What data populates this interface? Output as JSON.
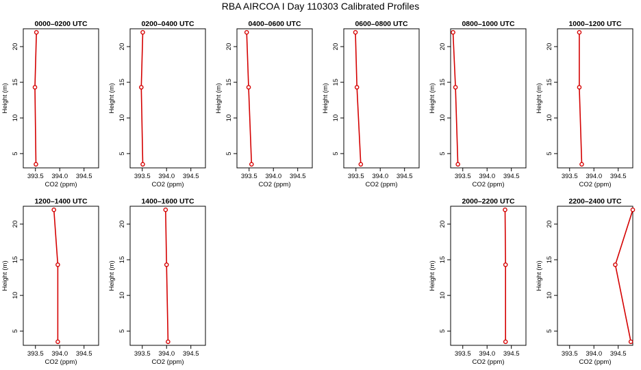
{
  "figure": {
    "title": "RBA AIRCOA I  Day 110303  Calibrated Profiles"
  },
  "chart_data": [
    {
      "type": "line",
      "title": "0000–0200 UTC",
      "xlabel": "CO2 (ppm)",
      "ylabel": "Height (m)",
      "xlim": [
        393.25,
        394.8
      ],
      "ylim": [
        3,
        22.5
      ],
      "xticks": [
        "393.5",
        "394.0",
        "394.5"
      ],
      "yticks": [
        "5",
        "10",
        "15",
        "20"
      ],
      "series": [
        {
          "values": [
            {
              "x": 393.52,
              "y": 22
            },
            {
              "x": 393.49,
              "y": 14.3
            },
            {
              "x": 393.51,
              "y": 3.5
            }
          ]
        }
      ]
    },
    {
      "type": "line",
      "title": "0200–0400 UTC",
      "xlabel": "CO2 (ppm)",
      "ylabel": "Height (m)",
      "xlim": [
        393.25,
        394.8
      ],
      "ylim": [
        3,
        22.5
      ],
      "xticks": [
        "393.5",
        "394.0",
        "394.5"
      ],
      "yticks": [
        "5",
        "10",
        "15",
        "20"
      ],
      "series": [
        {
          "values": [
            {
              "x": 393.51,
              "y": 22
            },
            {
              "x": 393.48,
              "y": 14.3
            },
            {
              "x": 393.51,
              "y": 3.5
            }
          ]
        }
      ]
    },
    {
      "type": "line",
      "title": "0400–0600 UTC",
      "xlabel": "CO2 (ppm)",
      "ylabel": "Height (m)",
      "xlim": [
        393.25,
        394.8
      ],
      "ylim": [
        3,
        22.5
      ],
      "xticks": [
        "393.5",
        "394.0",
        "394.5"
      ],
      "yticks": [
        "5",
        "10",
        "15",
        "20"
      ],
      "series": [
        {
          "values": [
            {
              "x": 393.45,
              "y": 22
            },
            {
              "x": 393.49,
              "y": 14.3
            },
            {
              "x": 393.55,
              "y": 3.5
            }
          ]
        }
      ]
    },
    {
      "type": "line",
      "title": "0600–0800 UTC",
      "xlabel": "CO2 (ppm)",
      "ylabel": "Height (m)",
      "xlim": [
        393.25,
        394.8
      ],
      "ylim": [
        3,
        22.5
      ],
      "xticks": [
        "393.5",
        "394.0",
        "394.5"
      ],
      "yticks": [
        "5",
        "10",
        "15",
        "20"
      ],
      "series": [
        {
          "values": [
            {
              "x": 393.49,
              "y": 22
            },
            {
              "x": 393.52,
              "y": 14.3
            },
            {
              "x": 393.6,
              "y": 3.5
            }
          ]
        }
      ]
    },
    {
      "type": "line",
      "title": "0800–1000 UTC",
      "xlabel": "CO2 (ppm)",
      "ylabel": "Height (m)",
      "xlim": [
        393.25,
        394.8
      ],
      "ylim": [
        3,
        22.5
      ],
      "xticks": [
        "393.5",
        "394.0",
        "394.5"
      ],
      "yticks": [
        "5",
        "10",
        "15",
        "20"
      ],
      "series": [
        {
          "values": [
            {
              "x": 393.3,
              "y": 22
            },
            {
              "x": 393.35,
              "y": 14.3
            },
            {
              "x": 393.4,
              "y": 3.5
            }
          ]
        }
      ]
    },
    {
      "type": "line",
      "title": "1000–1200 UTC",
      "xlabel": "CO2 (ppm)",
      "ylabel": "Height (m)",
      "xlim": [
        393.25,
        394.8
      ],
      "ylim": [
        3,
        22.5
      ],
      "xticks": [
        "393.5",
        "394.0",
        "394.5"
      ],
      "yticks": [
        "5",
        "10",
        "15",
        "20"
      ],
      "series": [
        {
          "values": [
            {
              "x": 393.7,
              "y": 22
            },
            {
              "x": 393.7,
              "y": 14.3
            },
            {
              "x": 393.75,
              "y": 3.5
            }
          ]
        }
      ]
    },
    {
      "type": "line",
      "title": "1200–1400 UTC",
      "xlabel": "CO2 (ppm)",
      "ylabel": "Height (m)",
      "xlim": [
        393.25,
        394.8
      ],
      "ylim": [
        3,
        22.5
      ],
      "xticks": [
        "393.5",
        "394.0",
        "394.5"
      ],
      "yticks": [
        "5",
        "10",
        "15",
        "20"
      ],
      "series": [
        {
          "values": [
            {
              "x": 393.88,
              "y": 22
            },
            {
              "x": 393.96,
              "y": 14.3
            },
            {
              "x": 393.96,
              "y": 3.5
            }
          ]
        }
      ]
    },
    {
      "type": "line",
      "title": "1400–1600 UTC",
      "xlabel": "CO2 (ppm)",
      "ylabel": "Height (m)",
      "xlim": [
        393.25,
        394.8
      ],
      "ylim": [
        3,
        22.5
      ],
      "xticks": [
        "393.5",
        "394.0",
        "394.5"
      ],
      "yticks": [
        "5",
        "10",
        "15",
        "20"
      ],
      "series": [
        {
          "values": [
            {
              "x": 393.98,
              "y": 22
            },
            {
              "x": 394.0,
              "y": 14.3
            },
            {
              "x": 394.03,
              "y": 3.5
            }
          ]
        }
      ]
    },
    {
      "type": "line",
      "title": "2000–2200 UTC",
      "xlabel": "CO2 (ppm)",
      "ylabel": "Height (m)",
      "xlim": [
        393.25,
        394.8
      ],
      "ylim": [
        3,
        22.5
      ],
      "xticks": [
        "393.5",
        "394.0",
        "394.5"
      ],
      "yticks": [
        "5",
        "10",
        "15",
        "20"
      ],
      "series": [
        {
          "values": [
            {
              "x": 394.37,
              "y": 22
            },
            {
              "x": 394.38,
              "y": 14.3
            },
            {
              "x": 394.38,
              "y": 3.5
            }
          ]
        }
      ]
    },
    {
      "type": "line",
      "title": "2200–2400 UTC",
      "xlabel": "CO2 (ppm)",
      "ylabel": "Height (m)",
      "xlim": [
        393.25,
        394.8
      ],
      "ylim": [
        3,
        22.5
      ],
      "xticks": [
        "393.5",
        "394.0",
        "394.5"
      ],
      "yticks": [
        "5",
        "10",
        "15",
        "20"
      ],
      "series": [
        {
          "values": [
            {
              "x": 394.8,
              "y": 22
            },
            {
              "x": 394.44,
              "y": 14.3
            },
            {
              "x": 394.76,
              "y": 3.5
            }
          ]
        }
      ]
    }
  ],
  "style": {
    "line_color": "#d40000",
    "marker_color": "#d40000",
    "axis_color": "#000000",
    "background": "#ffffff"
  }
}
